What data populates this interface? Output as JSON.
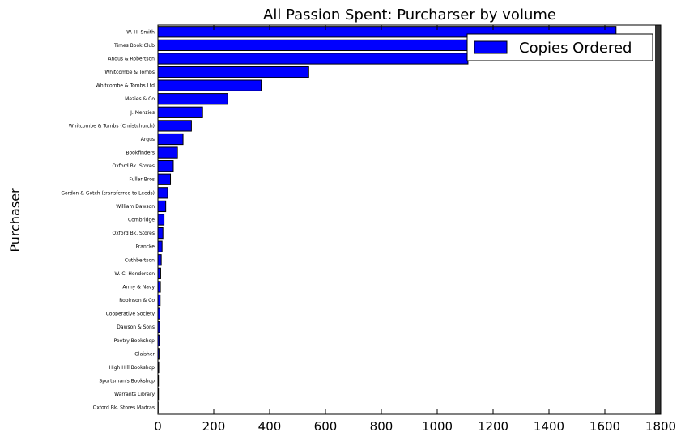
{
  "chart_data": {
    "type": "bar",
    "orientation": "horizontal",
    "title": "All Passion Spent: Purcharser by volume",
    "xlabel": "",
    "ylabel": "Purchaser",
    "xlim": [
      0,
      1800
    ],
    "xticks": [
      0,
      200,
      400,
      600,
      800,
      1000,
      1200,
      1400,
      1600,
      1800
    ],
    "grid": false,
    "legend": {
      "position": "top-right",
      "entries": [
        "Copies Ordered"
      ]
    },
    "series_color": "#0000ff",
    "bar_edge_color": "#000000",
    "categories": [
      "W. H. Smith",
      "Times Book Club",
      "Angus & Robertson",
      "Whitcombe & Tombs",
      "Whitcombe & Tombs Ltd",
      "Mezies & Co",
      "J. Menzies",
      "Whitcombe & Tombs (Christchurch)",
      "Argus",
      "Bookfinders",
      "Oxford Bk. Stores",
      "Fuller Bros",
      "Gordon & Gotch (transferred to Leeds)",
      "William Dawson",
      "Combridge",
      "Oxford Bk. Stores",
      "Francke",
      "Cuthbertson",
      "W. C. Henderson",
      "Army & Navy",
      "Robinson & Co",
      "Cooperative Society",
      "Dawson & Sons",
      "Poetry Bookshop",
      "Glaisher",
      "High Hill Bookshop",
      "Sportsman's Bookshop",
      "Warrants Library",
      "Oxford Bk. Stores Madras"
    ],
    "values": [
      1640,
      1470,
      1110,
      540,
      370,
      250,
      160,
      120,
      90,
      70,
      55,
      45,
      35,
      28,
      22,
      18,
      15,
      12,
      10,
      9,
      8,
      7,
      6,
      5,
      4,
      3,
      2,
      2,
      1
    ]
  }
}
